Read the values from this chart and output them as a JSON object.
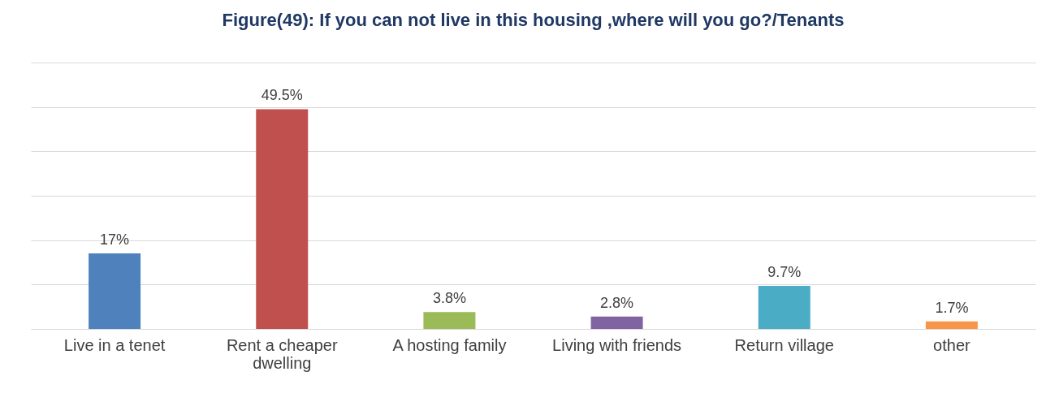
{
  "chart_data": {
    "type": "bar",
    "title": "Figure(49): If you can not live in this housing ,where will  you go?/Tenants",
    "categories": [
      "Live in a tenet",
      "Rent a cheaper dwelling",
      "A hosting family",
      "Living with friends",
      "Return village",
      "other"
    ],
    "values": [
      17,
      49.5,
      3.8,
      2.8,
      9.7,
      1.7
    ],
    "colors": [
      "#4f81bd",
      "#c0504d",
      "#9bbb59",
      "#8064a2",
      "#4bacc6",
      "#f79646"
    ],
    "value_labels": [
      "17%",
      "49.5%",
      "3.8%",
      "2.8%",
      "9.7%",
      "1.7%"
    ],
    "ylim": [
      0,
      60
    ],
    "yticks": [
      {
        "value": 0,
        "label": null
      },
      {
        "value": 10,
        "label": null
      },
      {
        "value": 20,
        "label": null
      },
      {
        "value": 30,
        "label": null
      },
      {
        "value": 40,
        "label": null
      },
      {
        "value": 50,
        "label": null
      },
      {
        "value": 60,
        "label": null
      }
    ],
    "grid": "y",
    "legend": false
  }
}
